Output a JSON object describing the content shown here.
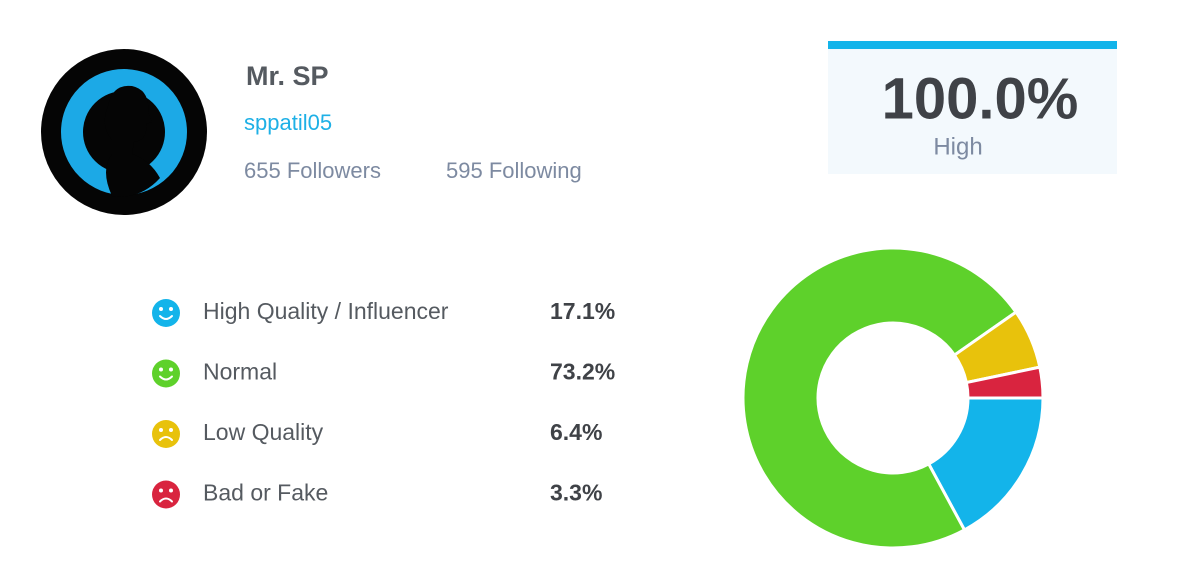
{
  "profile": {
    "name": "Mr. SP",
    "handle": "sppatil05",
    "followers": "655 Followers",
    "following": "595 Following"
  },
  "score": {
    "value": "100.0%",
    "label": "High"
  },
  "chart_data": {
    "type": "donut",
    "categories": [
      "High Quality / Influencer",
      "Normal",
      "Low Quality",
      "Bad or Fake"
    ],
    "values": [
      17.1,
      73.2,
      6.4,
      3.3
    ],
    "value_labels": [
      "17.1%",
      "73.2%",
      "6.4%",
      "3.3%"
    ],
    "colors": [
      "#13b4ea",
      "#5ed12b",
      "#e8c20c",
      "#d9243f"
    ]
  }
}
